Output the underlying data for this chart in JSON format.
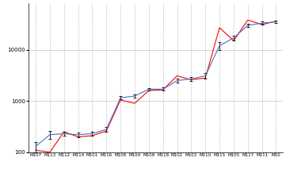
{
  "x_labels": [
    "M107",
    "M113",
    "M112",
    "M114",
    "M101",
    "M116",
    "M108",
    "M104",
    "M109",
    "M118",
    "M102",
    "M103",
    "M110",
    "M115",
    "M105",
    "M117",
    "M111",
    "M10"
  ],
  "blue_values": [
    130,
    220,
    230,
    220,
    230,
    280,
    1150,
    1250,
    1700,
    1700,
    2500,
    2700,
    3100,
    12000,
    17000,
    30000,
    33000,
    35000
  ],
  "red_values": [
    110,
    100,
    250,
    200,
    210,
    260,
    1050,
    900,
    1600,
    1650,
    3100,
    2600,
    2800,
    27000,
    15000,
    38000,
    31000,
    36000
  ],
  "blue_errors": [
    30,
    40,
    20,
    25,
    20,
    30,
    80,
    80,
    100,
    120,
    200,
    200,
    400,
    2000,
    2000,
    2000,
    2500,
    2000
  ],
  "blue_color": "#4472C4",
  "red_color": "#FF0000",
  "bg_color": "#FFFFFF",
  "grid_color": "#C0C0C0",
  "ylim_min": 100,
  "ylim_max": 80000,
  "yticks": [
    100,
    1000,
    10000
  ],
  "ytick_labels": [
    "100",
    "1000",
    "10000"
  ]
}
